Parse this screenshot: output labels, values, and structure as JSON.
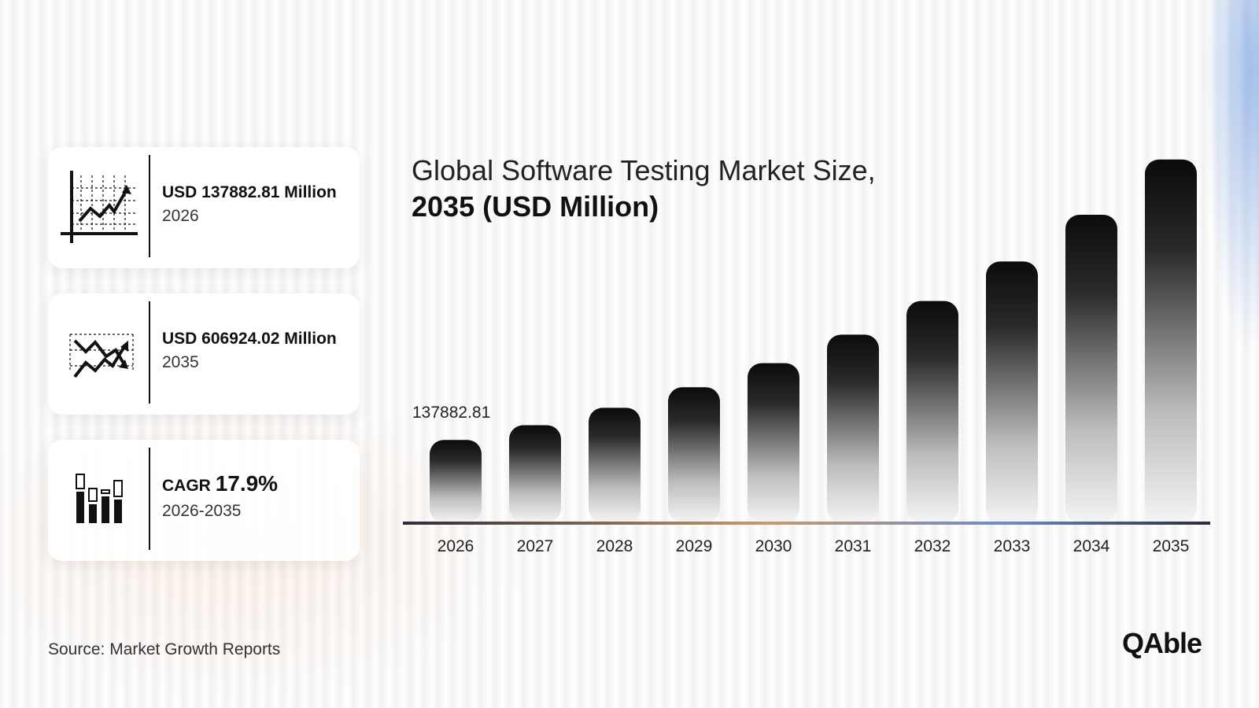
{
  "stats": [
    {
      "value": "USD 137882.81 Million",
      "label": "2026",
      "icon": "growth-chart-icon"
    },
    {
      "value": "USD 606924.02 Million",
      "label": "2035",
      "icon": "crossing-trend-lines-icon"
    },
    {
      "cagr_label": "CAGR",
      "cagr_value": "17.9%",
      "label": "2026-2035",
      "icon": "bar-chart-icon"
    }
  ],
  "title_line1": "Global Software Testing Market Size,",
  "title_line2": "2035 (USD Million)",
  "source": "Source: Market Growth Reports",
  "logo": "QAble",
  "colors": {
    "bar_top": "#0b0b0b",
    "bar_bottom": "#f4f4f4",
    "baseline": "#2b2b3a",
    "accent_blue": "#5a8cdc"
  },
  "chart_data": {
    "type": "bar",
    "categories": [
      "2026",
      "2027",
      "2028",
      "2029",
      "2030",
      "2031",
      "2032",
      "2033",
      "2034",
      "2035"
    ],
    "values": [
      137882.81,
      162553.2,
      191638.0,
      225928.5,
      266343.0,
      313989.0,
      370159.0,
      436378.0,
      514449.0,
      606924.02
    ],
    "data_labels": [
      "137882.81",
      "",
      "",
      "",
      "",
      "",
      "",
      "",
      "",
      ""
    ],
    "ylim": [
      0,
      650000
    ],
    "grid": false,
    "legend": "none"
  }
}
